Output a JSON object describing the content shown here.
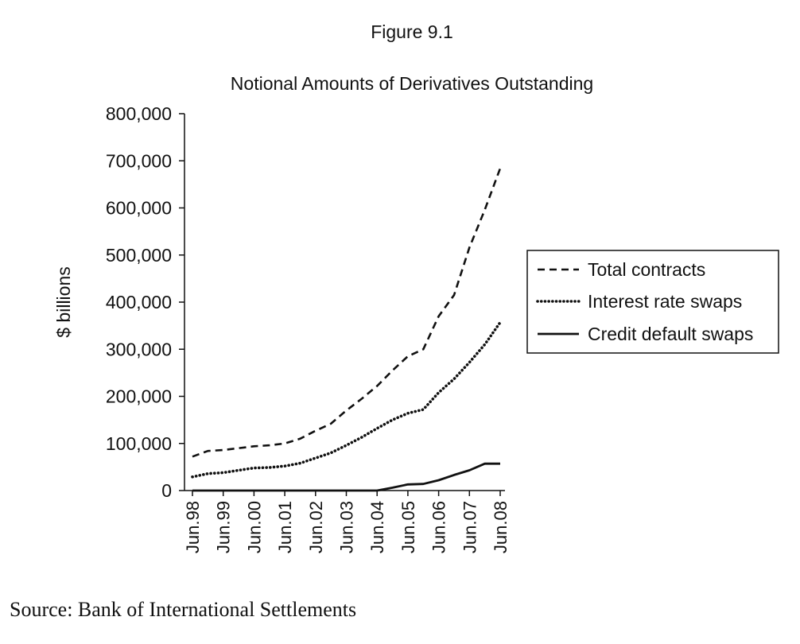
{
  "figure_label": "Figure 9.1",
  "source": "Source: Bank of International Settlements",
  "colors": {
    "ink": "#111111",
    "background": "#ffffff"
  },
  "chart_data": {
    "type": "line",
    "title": "Notional Amounts of Derivatives Outstanding",
    "ylabel": "$ billions",
    "xlabel": "",
    "ylim": [
      0,
      800000
    ],
    "yticks": [
      0,
      100000,
      200000,
      300000,
      400000,
      500000,
      600000,
      700000,
      800000
    ],
    "ytick_labels": [
      "0",
      "100,000",
      "200,000",
      "300,000",
      "400,000",
      "500,000",
      "600,000",
      "700,000",
      "800,000"
    ],
    "x": [
      "Jun.98",
      "Dec.98",
      "Jun.99",
      "Dec.99",
      "Jun.00",
      "Dec.00",
      "Jun.01",
      "Dec.01",
      "Jun.02",
      "Dec.02",
      "Jun.03",
      "Dec.03",
      "Jun.04",
      "Dec.04",
      "Jun.05",
      "Dec.05",
      "Jun.06",
      "Dec.06",
      "Jun.07",
      "Dec.07",
      "Jun.08"
    ],
    "xtick_labels": [
      "Jun.98",
      "Jun.99",
      "Jun.00",
      "Jun.01",
      "Jun.02",
      "Jun.03",
      "Jun.04",
      "Jun.05",
      "Jun.06",
      "Jun.07",
      "Jun.08"
    ],
    "legend_position": "right",
    "grid": false,
    "series": [
      {
        "name": "Total contracts",
        "style": "dashed",
        "values": [
          72000,
          84000,
          86000,
          90000,
          94000,
          96000,
          100000,
          110000,
          127000,
          142000,
          170000,
          195000,
          222000,
          255000,
          285000,
          300000,
          370000,
          415000,
          516000,
          596000,
          684000
        ]
      },
      {
        "name": "Interest rate swaps",
        "style": "dotted",
        "values": [
          29000,
          36000,
          38000,
          43000,
          48000,
          49000,
          52000,
          58000,
          69000,
          80000,
          96000,
          113000,
          132000,
          150000,
          164000,
          172000,
          208000,
          237000,
          272000,
          310000,
          357000
        ]
      },
      {
        "name": "Credit default swaps",
        "style": "solid",
        "values": [
          0,
          0,
          0,
          0,
          0,
          0,
          0,
          0,
          0,
          0,
          0,
          0,
          0,
          6000,
          13000,
          14000,
          22000,
          33000,
          43000,
          57000,
          57000
        ]
      }
    ]
  }
}
